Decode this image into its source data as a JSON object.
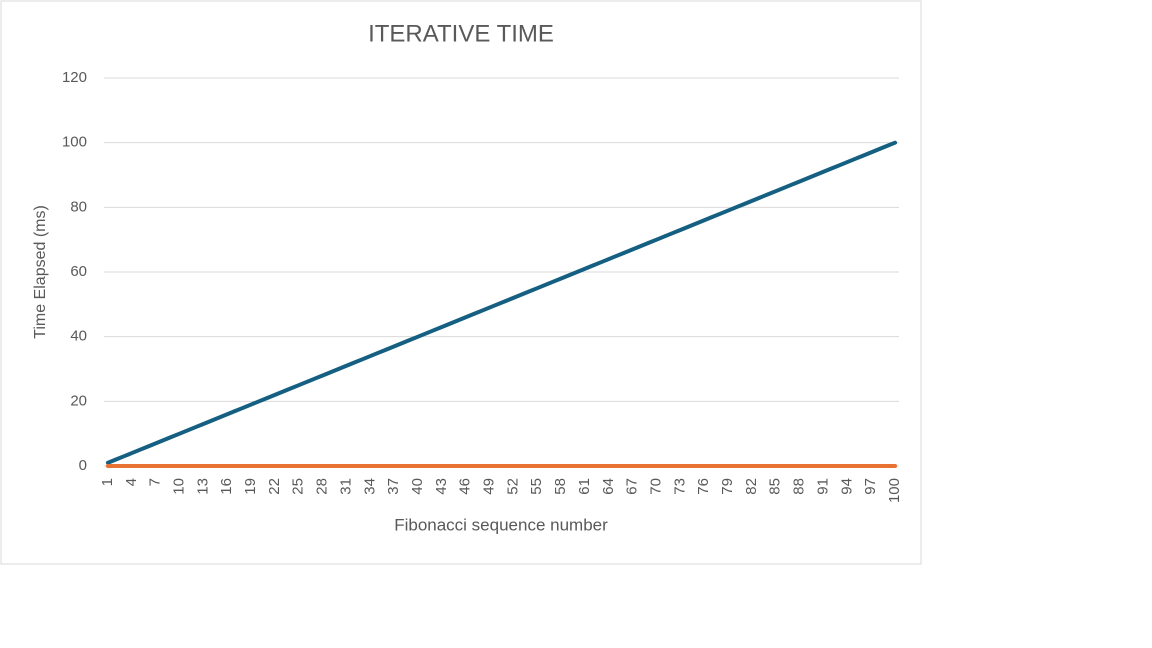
{
  "chart_data": {
    "type": "line",
    "title": "ITERATIVE TIME",
    "x_label": "Fibonacci sequence number",
    "y_label": "Time Elapsed (ms)",
    "categories": [
      "1",
      null,
      null,
      "4",
      null,
      null,
      "7",
      null,
      null,
      "10",
      null,
      null,
      "13",
      null,
      null,
      "16",
      null,
      null,
      "19",
      null,
      null,
      "22",
      null,
      null,
      "25",
      null,
      null,
      "28",
      null,
      null,
      "31",
      null,
      null,
      "34",
      null,
      null,
      "37",
      null,
      null,
      "40",
      null,
      null,
      "43",
      null,
      null,
      "46",
      null,
      null,
      "49",
      null,
      null,
      "52",
      null,
      null,
      "55",
      null,
      null,
      "58",
      null,
      null,
      "61",
      null,
      null,
      "64",
      null,
      null,
      "67",
      null,
      null,
      "70",
      null,
      null,
      "73",
      null,
      null,
      "76",
      null,
      null,
      "79",
      null,
      null,
      "82",
      null,
      null,
      "85",
      null,
      null,
      "88",
      null,
      null,
      "91",
      null,
      null,
      "94",
      null,
      null,
      "97",
      null,
      null,
      "100"
    ],
    "series": [
      {
        "color": "#156082",
        "values": [
          1,
          2,
          3,
          4,
          5,
          6,
          7,
          8,
          9,
          10,
          11,
          12,
          13,
          14,
          15,
          16,
          17,
          18,
          19,
          20,
          21,
          22,
          23,
          24,
          25,
          26,
          27,
          28,
          29,
          30,
          31,
          32,
          33,
          34,
          35,
          36,
          37,
          38,
          39,
          40,
          41,
          42,
          43,
          44,
          45,
          46,
          47,
          48,
          49,
          50,
          51,
          52,
          53,
          54,
          55,
          56,
          57,
          58,
          59,
          60,
          61,
          62,
          63,
          64,
          65,
          66,
          67,
          68,
          69,
          70,
          71,
          72,
          73,
          74,
          75,
          76,
          77,
          78,
          79,
          80,
          81,
          82,
          83,
          84,
          85,
          86,
          87,
          88,
          89,
          90,
          91,
          92,
          93,
          94,
          95,
          96,
          97,
          98,
          99,
          100
        ]
      },
      {
        "color": "#e97132",
        "values": [
          0,
          0,
          0,
          0,
          0,
          0,
          0,
          0,
          0,
          0,
          0,
          0,
          0,
          0,
          0,
          0,
          0,
          0,
          0,
          0,
          0,
          0,
          0,
          0,
          0,
          0,
          0,
          0,
          0,
          0,
          0,
          0,
          0,
          0,
          0,
          0,
          0,
          0,
          0,
          0,
          0,
          0,
          0,
          0,
          0,
          0,
          0,
          0,
          0,
          0,
          0,
          0,
          0,
          0,
          0,
          0,
          0,
          0,
          0,
          0,
          0,
          0,
          0,
          0,
          0,
          0,
          0,
          0,
          0,
          0,
          0,
          0,
          0,
          0,
          0,
          0,
          0,
          0,
          0,
          0,
          0,
          0,
          0,
          0,
          0,
          0,
          0,
          0,
          0,
          0,
          0,
          0,
          0,
          0,
          0,
          0,
          0,
          0,
          0,
          0
        ]
      }
    ],
    "ylim": [
      0,
      120
    ],
    "yticks": [
      0,
      20,
      40,
      60,
      80,
      100,
      120
    ],
    "grid": true
  }
}
